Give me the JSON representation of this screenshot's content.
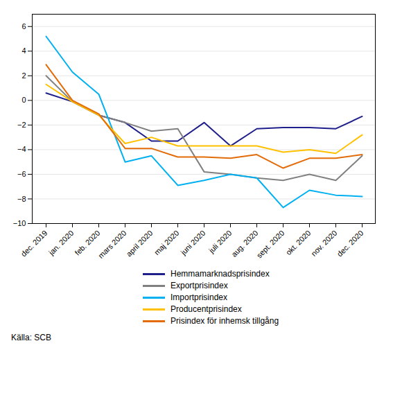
{
  "chart_data": {
    "type": "line",
    "categories": [
      "dec. 2019",
      "jan. 2020",
      "feb. 2020",
      "mars 2020",
      "april 2020",
      "maj 2020",
      "juni 2020",
      "juli 2020",
      "aug. 2020",
      "sept. 2020",
      "okt. 2020",
      "nov. 2020",
      "dec. 2020"
    ],
    "series": [
      {
        "name": "Hemmamarknadsprisindex",
        "color": "#1f1f8c",
        "values": [
          0.6,
          -0.1,
          -1.2,
          -1.8,
          -3.3,
          -3.3,
          -1.8,
          -3.7,
          -2.3,
          -2.2,
          -2.2,
          -2.3,
          -1.3
        ]
      },
      {
        "name": "Exportprisindex",
        "color": "#808080",
        "values": [
          2.0,
          -0.1,
          -1.2,
          -1.8,
          -2.5,
          -2.3,
          -5.8,
          -6.0,
          -6.3,
          -6.5,
          -6.0,
          -6.5,
          -4.5
        ]
      },
      {
        "name": "Importprisindex",
        "color": "#00b0f0",
        "values": [
          5.2,
          2.3,
          0.5,
          -5.0,
          -4.5,
          -6.9,
          -6.5,
          -6.0,
          -6.3,
          -8.7,
          -7.3,
          -7.7,
          -7.8
        ]
      },
      {
        "name": "Producentprisindex",
        "color": "#ffc000",
        "values": [
          1.3,
          -0.1,
          -1.2,
          -3.5,
          -3.0,
          -3.7,
          -3.7,
          -3.7,
          -3.7,
          -4.2,
          -4.0,
          -4.3,
          -2.8
        ]
      },
      {
        "name": "Prisindex för inhemsk tillgång",
        "color": "#e36c09",
        "values": [
          2.9,
          0.0,
          -1.1,
          -3.9,
          -3.9,
          -4.6,
          -4.6,
          -4.7,
          -4.4,
          -5.5,
          -4.7,
          -4.7,
          -4.4
        ]
      }
    ],
    "ylim": [
      -10,
      7
    ],
    "yticks": [
      -10,
      -8,
      -6,
      -4,
      -2,
      0,
      2,
      4,
      6
    ],
    "grid": true,
    "legend": "bottom",
    "annotations": [
      "Källa: SCB"
    ]
  }
}
